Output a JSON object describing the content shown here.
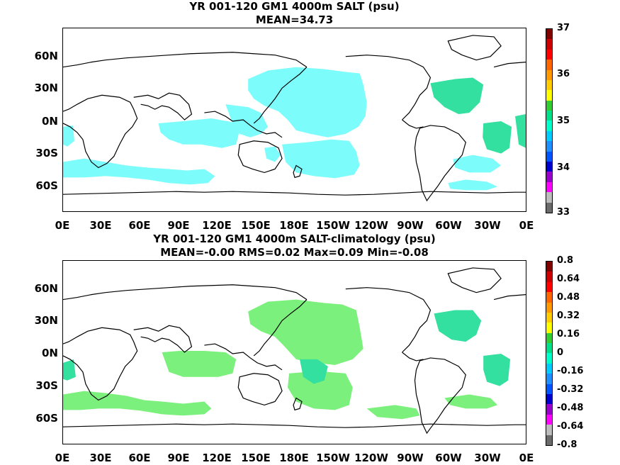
{
  "panels": [
    {
      "title": "YR 001-120 GM1 4000m SALT (psu)",
      "subtitle": "MEAN=34.73",
      "colorbar_labels": [
        "37",
        "36",
        "35",
        "34",
        "33"
      ],
      "colorbar_colors": [
        "#6b6b6b",
        "#bdbdbd",
        "#ff00ff",
        "#9900cc",
        "#0000cc",
        "#0055ff",
        "#1e90ff",
        "#00ccff",
        "#00ffcc",
        "#00e08a",
        "#33cc33",
        "#ffff00",
        "#ffcc00",
        "#ff9900",
        "#ff6600",
        "#ff0000",
        "#cc0000",
        "#800000"
      ]
    },
    {
      "title": "YR 001-120 GM1 4000m SALT-climatology (psu)",
      "subtitle": "MEAN=-0.00   RMS=0.02   Max=0.09   Min=-0.08",
      "colorbar_labels": [
        "0.8",
        "0.64",
        "0.48",
        "0.32",
        "0.16",
        "0",
        "-0.16",
        "-0.32",
        "-0.48",
        "-0.64",
        "-0.8"
      ],
      "colorbar_colors": [
        "#6b6b6b",
        "#bdbdbd",
        "#ff00ff",
        "#9900cc",
        "#0000cc",
        "#0055ff",
        "#1e90ff",
        "#00ccff",
        "#00ffcc",
        "#00e08a",
        "#33cc33",
        "#ffff00",
        "#ffcc00",
        "#ff9900",
        "#ff6600",
        "#ff0000",
        "#cc0000",
        "#800000"
      ]
    }
  ],
  "x_ticks": [
    "0E",
    "30E",
    "60E",
    "90E",
    "120E",
    "150E",
    "180E",
    "150W",
    "120W",
    "90W",
    "60W",
    "30W",
    "0E"
  ],
  "y_ticks": [
    "60N",
    "30N",
    "0N",
    "30S",
    "60S"
  ],
  "colors": {
    "field_top": "#7dfcfc",
    "field_top_alt": "#33e0a0",
    "field_bottom_pos": "#7cf07c",
    "field_bottom_neg": "#33e0a0",
    "coast": "#000000"
  }
}
